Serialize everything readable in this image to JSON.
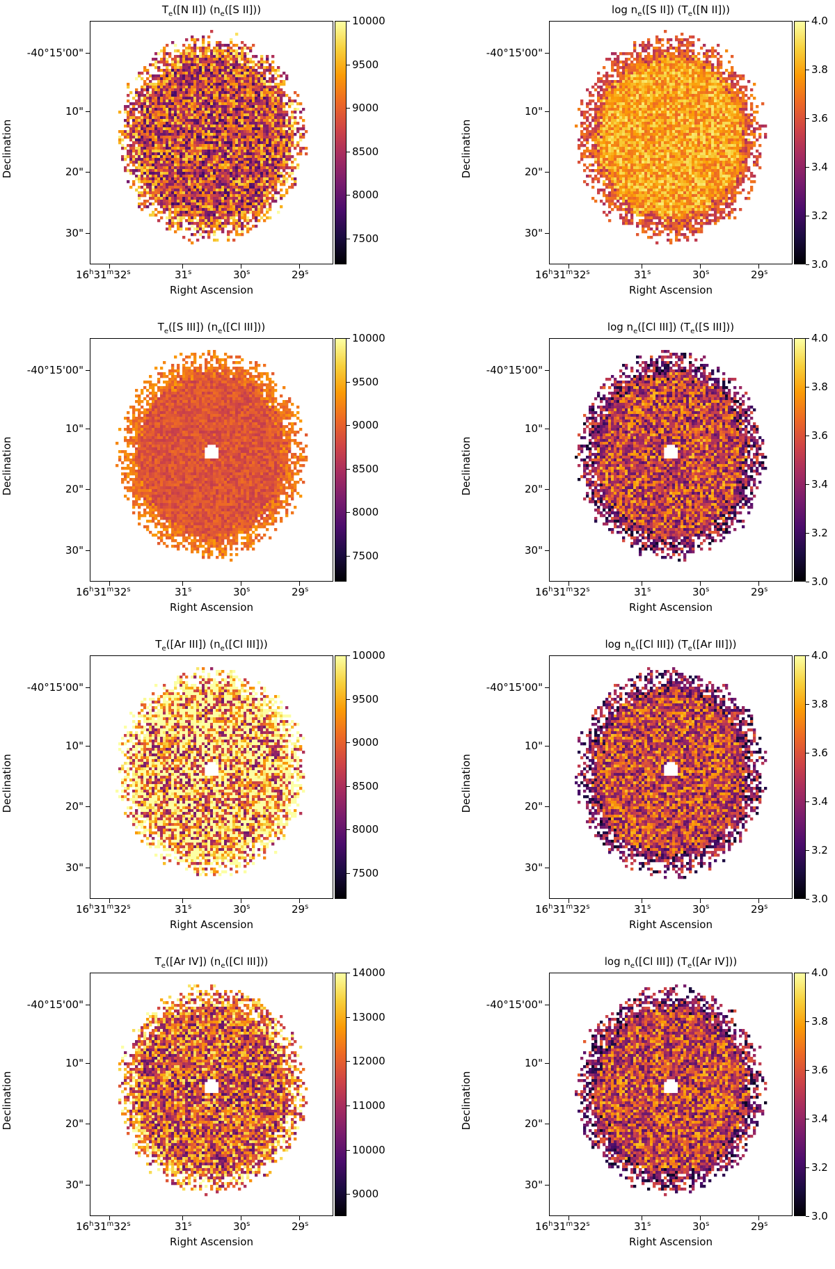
{
  "chart_data": [
    {
      "type": "heatmap",
      "title": "T_e([N II]) (n_e([S II]))",
      "title_html": "T<sub>e</sub>([N II]) (n<sub>e</sub>([S II]))",
      "xlabel": "Right Ascension",
      "ylabel": "Declination",
      "xticks": [
        "16h31m32s",
        "31s",
        "30s",
        "29s"
      ],
      "yticks": [
        "-40°15'00\"",
        "10\"",
        "20\"",
        "30\""
      ],
      "colorbar": {
        "cmap": "inferno",
        "ticks": [
          "7500",
          "8000",
          "8500",
          "9000",
          "9500",
          "10000"
        ],
        "range": [
          7200,
          10000
        ]
      }
    },
    {
      "type": "heatmap",
      "title": "log n_e([S II]) (T_e([N II]))",
      "title_html": "log n<sub>e</sub>([S II]) (T<sub>e</sub>([N II]))",
      "xlabel": "Right Ascension",
      "ylabel": "Declination",
      "xticks": [
        "16h31m32s",
        "31s",
        "30s",
        "29s"
      ],
      "yticks": [
        "-40°15'00\"",
        "10\"",
        "20\"",
        "30\""
      ],
      "colorbar": {
        "cmap": "inferno",
        "ticks": [
          "3.0",
          "3.2",
          "3.4",
          "3.6",
          "3.8",
          "4.0"
        ],
        "range": [
          3.0,
          4.0
        ]
      }
    },
    {
      "type": "heatmap",
      "title": "T_e([S III]) (n_e([Cl III]))",
      "title_html": "T<sub>e</sub>([S III]) (n<sub>e</sub>([Cl III]))",
      "xlabel": "Right Ascension",
      "ylabel": "Declination",
      "xticks": [
        "16h31m32s",
        "31s",
        "30s",
        "29s"
      ],
      "yticks": [
        "-40°15'00\"",
        "10\"",
        "20\"",
        "30\""
      ],
      "colorbar": {
        "cmap": "inferno",
        "ticks": [
          "7500",
          "8000",
          "8500",
          "9000",
          "9500",
          "10000"
        ],
        "range": [
          7200,
          10000
        ]
      }
    },
    {
      "type": "heatmap",
      "title": "log n_e([Cl III]) (T_e([S III]))",
      "title_html": "log n<sub>e</sub>([Cl III]) (T<sub>e</sub>([S III]))",
      "xlabel": "Right Ascension",
      "ylabel": "Declination",
      "xticks": [
        "16h31m32s",
        "31s",
        "30s",
        "29s"
      ],
      "yticks": [
        "-40°15'00\"",
        "10\"",
        "20\"",
        "30\""
      ],
      "colorbar": {
        "cmap": "inferno",
        "ticks": [
          "3.0",
          "3.2",
          "3.4",
          "3.6",
          "3.8",
          "4.0"
        ],
        "range": [
          3.0,
          4.0
        ]
      }
    },
    {
      "type": "heatmap",
      "title": "T_e([Ar III]) (n_e([Cl III]))",
      "title_html": "T<sub>e</sub>([Ar III]) (n<sub>e</sub>([Cl III]))",
      "xlabel": "Right Ascension",
      "ylabel": "Declination",
      "xticks": [
        "16h31m32s",
        "31s",
        "30s",
        "29s"
      ],
      "yticks": [
        "-40°15'00\"",
        "10\"",
        "20\"",
        "30\""
      ],
      "colorbar": {
        "cmap": "inferno",
        "ticks": [
          "7500",
          "8000",
          "8500",
          "9000",
          "9500",
          "10000"
        ],
        "range": [
          7200,
          10000
        ]
      }
    },
    {
      "type": "heatmap",
      "title": "log n_e([Cl III]) (T_e([Ar III]))",
      "title_html": "log n<sub>e</sub>([Cl III]) (T<sub>e</sub>([Ar III]))",
      "xlabel": "Right Ascension",
      "ylabel": "Declination",
      "xticks": [
        "16h31m32s",
        "31s",
        "30s",
        "29s"
      ],
      "yticks": [
        "-40°15'00\"",
        "10\"",
        "20\"",
        "30\""
      ],
      "colorbar": {
        "cmap": "inferno",
        "ticks": [
          "3.0",
          "3.2",
          "3.4",
          "3.6",
          "3.8",
          "4.0"
        ],
        "range": [
          3.0,
          4.0
        ]
      }
    },
    {
      "type": "heatmap",
      "title": "T_e([Ar IV]) (n_e([Cl III]))",
      "title_html": "T<sub>e</sub>([Ar IV]) (n<sub>e</sub>([Cl III]))",
      "xlabel": "Right Ascension",
      "ylabel": "Declination",
      "xticks": [
        "16h31m32s",
        "31s",
        "30s",
        "29s"
      ],
      "yticks": [
        "-40°15'00\"",
        "10\"",
        "20\"",
        "30\""
      ],
      "colorbar": {
        "cmap": "inferno",
        "ticks": [
          "9000",
          "10000",
          "11000",
          "12000",
          "13000",
          "14000"
        ],
        "range": [
          8500,
          14000
        ]
      }
    },
    {
      "type": "heatmap",
      "title": "log n_e([Cl III]) (T_e([Ar IV]))",
      "title_html": "log n<sub>e</sub>([Cl III]) (T<sub>e</sub>([Ar IV]))",
      "xlabel": "Right Ascension",
      "ylabel": "Declination",
      "xticks": [
        "16h31m32s",
        "31s",
        "30s",
        "29s"
      ],
      "yticks": [
        "-40°15'00\"",
        "10\"",
        "20\"",
        "30\""
      ],
      "colorbar": {
        "cmap": "inferno",
        "ticks": [
          "3.0",
          "3.2",
          "3.4",
          "3.6",
          "3.8",
          "4.0"
        ],
        "range": [
          3.0,
          4.0
        ]
      }
    }
  ]
}
